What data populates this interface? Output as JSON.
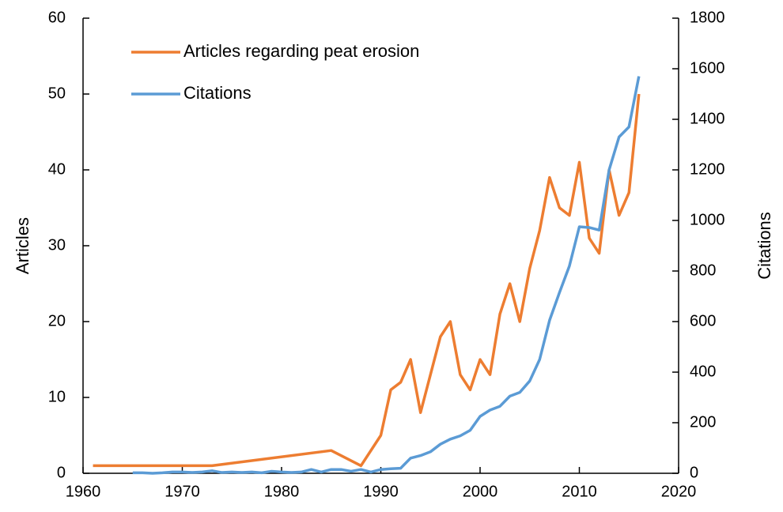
{
  "chart_data": {
    "type": "line",
    "xlabel": null,
    "ylabel": "Articles",
    "y2label": "Citations",
    "xlim": [
      1960,
      2020
    ],
    "xticks": [
      1960,
      1970,
      1980,
      1990,
      2000,
      2010,
      2020
    ],
    "ylim": [
      0,
      60
    ],
    "yticks": [
      0,
      10,
      20,
      30,
      40,
      50,
      60
    ],
    "y2lim": [
      0,
      1800
    ],
    "y2ticks": [
      0,
      200,
      400,
      600,
      800,
      1000,
      1200,
      1400,
      1600,
      1800
    ],
    "legend": "upper left",
    "series": [
      {
        "name": "Articles regarding peat erosion",
        "color": "#ed7d31",
        "axis": "y",
        "x": [
          1961,
          1973,
          1985,
          1988,
          1990,
          1991,
          1992,
          1993,
          1994,
          1995,
          1996,
          1997,
          1998,
          1999,
          2000,
          2001,
          2002,
          2003,
          2004,
          2005,
          2006,
          2007,
          2008,
          2009,
          2010,
          2011,
          2012,
          2013,
          2014,
          2015,
          2016
        ],
        "values": [
          1,
          1,
          3,
          1,
          5,
          11,
          12,
          15,
          8,
          13,
          18,
          20,
          13,
          11,
          15,
          13,
          21,
          25,
          20,
          27,
          32,
          39,
          35,
          34,
          41,
          31,
          29,
          40,
          34,
          37,
          50
        ]
      },
      {
        "name": "Citations",
        "color": "#5b9bd5",
        "axis": "y2",
        "x": [
          1965,
          1966,
          1967,
          1968,
          1969,
          1970,
          1971,
          1972,
          1973,
          1974,
          1975,
          1976,
          1977,
          1978,
          1979,
          1980,
          1981,
          1982,
          1983,
          1984,
          1985,
          1986,
          1987,
          1988,
          1989,
          1990,
          1991,
          1992,
          1993,
          1994,
          1995,
          1996,
          1997,
          1998,
          1999,
          2000,
          2001,
          2002,
          2003,
          2004,
          2005,
          2006,
          2007,
          2008,
          2009,
          2010,
          2011,
          2012,
          2013,
          2014,
          2015,
          2016
        ],
        "values": [
          2,
          2,
          0,
          2,
          5,
          5,
          3,
          5,
          10,
          3,
          5,
          3,
          5,
          2,
          8,
          5,
          3,
          5,
          15,
          5,
          15,
          15,
          8,
          15,
          5,
          15,
          18,
          20,
          60,
          70,
          85,
          115,
          135,
          148,
          170,
          225,
          250,
          265,
          305,
          320,
          365,
          450,
          605,
          715,
          820,
          975,
          972,
          962,
          1200,
          1330,
          1370,
          1570
        ]
      }
    ]
  }
}
